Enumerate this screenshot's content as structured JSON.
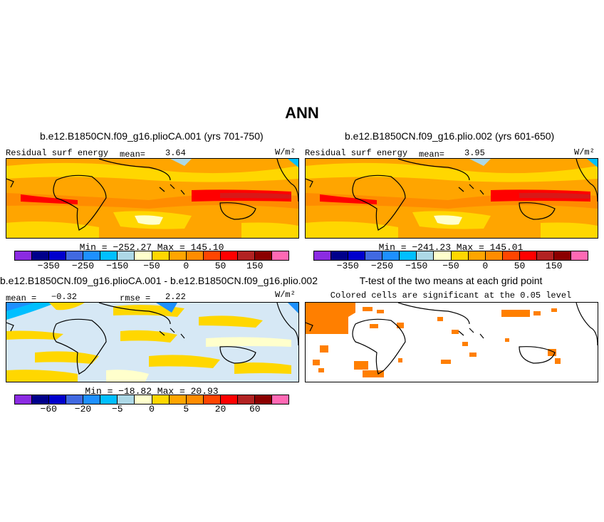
{
  "figure": {
    "title": "ANN"
  },
  "panels": {
    "case1": {
      "title": "b.e12.B1850CN.f09_g16.plioCA.001 (yrs 701-750)",
      "variable": "Residual surf energy",
      "mean_label": "mean=",
      "mean_value": "3.64",
      "units": "W/m²",
      "minmax": "Min = −252.27  Max = 145.10",
      "colorbar": {
        "colors": [
          "#8B2BE2",
          "#00008B",
          "#0000CD",
          "#4169E1",
          "#1E90FF",
          "#00BFFF",
          "#ADD8E6",
          "#FFFFCC",
          "#FFD700",
          "#FFA500",
          "#FF8C00",
          "#FF4500",
          "#FF0000",
          "#B22222",
          "#8B0000",
          "#FF69B4"
        ],
        "ticks": [
          "−350",
          "−250",
          "−150",
          "−50",
          "0",
          "50",
          "150"
        ]
      }
    },
    "case2": {
      "title": "b.e12.B1850CN.f09_g16.plio.002 (yrs 601-650)",
      "variable": "Residual surf energy",
      "mean_label": "mean=",
      "mean_value": "3.95",
      "units": "W/m²",
      "minmax": "Min = −241.23  Max = 145.01",
      "colorbar": {
        "colors": [
          "#8B2BE2",
          "#00008B",
          "#0000CD",
          "#4169E1",
          "#1E90FF",
          "#00BFFF",
          "#ADD8E6",
          "#FFFFCC",
          "#FFD700",
          "#FFA500",
          "#FF8C00",
          "#FF4500",
          "#FF0000",
          "#B22222",
          "#8B0000",
          "#FF69B4"
        ],
        "ticks": [
          "−350",
          "−250",
          "−150",
          "−50",
          "0",
          "50",
          "150"
        ]
      }
    },
    "difference": {
      "title": "b.e12.B1850CN.f09_g16.plioCA.001 - b.e12.B1850CN.f09_g16.plio.002",
      "mean_label": "mean =",
      "mean_value": "−0.32",
      "rmse_label": "rmse =",
      "rmse_value": "2.22",
      "units": "W/m²",
      "minmax": "Min = −18.82  Max =  20.93",
      "colorbar": {
        "colors": [
          "#8B2BE2",
          "#00008B",
          "#0000CD",
          "#4169E1",
          "#1E90FF",
          "#00BFFF",
          "#ADD8E6",
          "#FFFFCC",
          "#FFD700",
          "#FFA500",
          "#FF8C00",
          "#FF4500",
          "#FF0000",
          "#B22222",
          "#8B0000",
          "#FF69B4"
        ],
        "ticks": [
          "−60",
          "−20",
          "−5",
          "0",
          "5",
          "20",
          "60"
        ]
      }
    },
    "ttest": {
      "title": "T-test of the two means at each grid point",
      "subtitle": "Colored cells are significant at the 0.05 level",
      "sig_color": "#FF7F00"
    }
  }
}
